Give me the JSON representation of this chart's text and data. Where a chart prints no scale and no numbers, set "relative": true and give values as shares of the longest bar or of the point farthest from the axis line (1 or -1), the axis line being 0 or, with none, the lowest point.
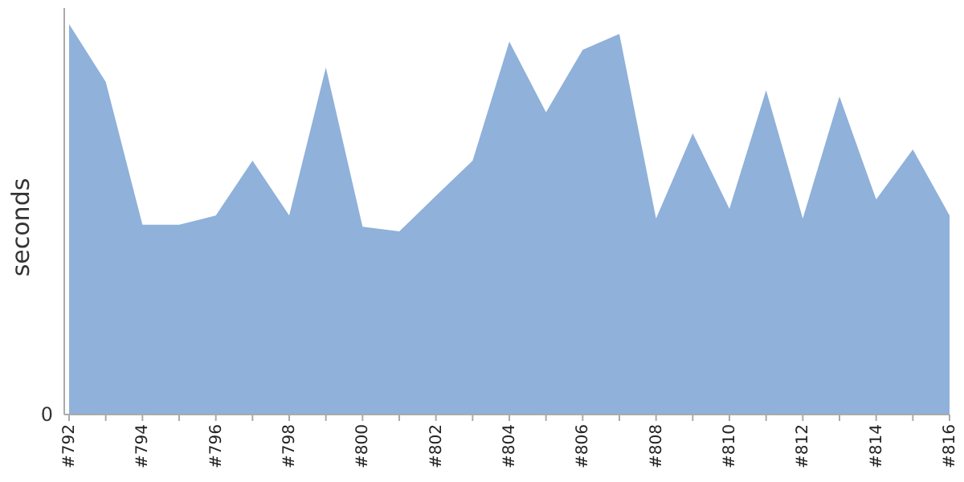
{
  "chart_data": {
    "type": "area",
    "ylabel": "seconds",
    "relative": true,
    "color": "#8fb1da",
    "categories": [
      "#792",
      null,
      "#794",
      null,
      "#796",
      null,
      "#798",
      null,
      "#800",
      null,
      "#802",
      null,
      "#804",
      null,
      "#806",
      null,
      "#808",
      null,
      "#810",
      null,
      "#812",
      null,
      "#814",
      null,
      "#816"
    ],
    "values": [
      1.0,
      0.852,
      0.486,
      0.486,
      0.51,
      0.65,
      0.51,
      0.889,
      0.481,
      0.469,
      0.56,
      0.65,
      0.955,
      0.774,
      0.934,
      0.975,
      0.502,
      0.72,
      0.527,
      0.831,
      0.502,
      0.815,
      0.551,
      0.679,
      0.51
    ],
    "annotations": [
      "0"
    ]
  }
}
